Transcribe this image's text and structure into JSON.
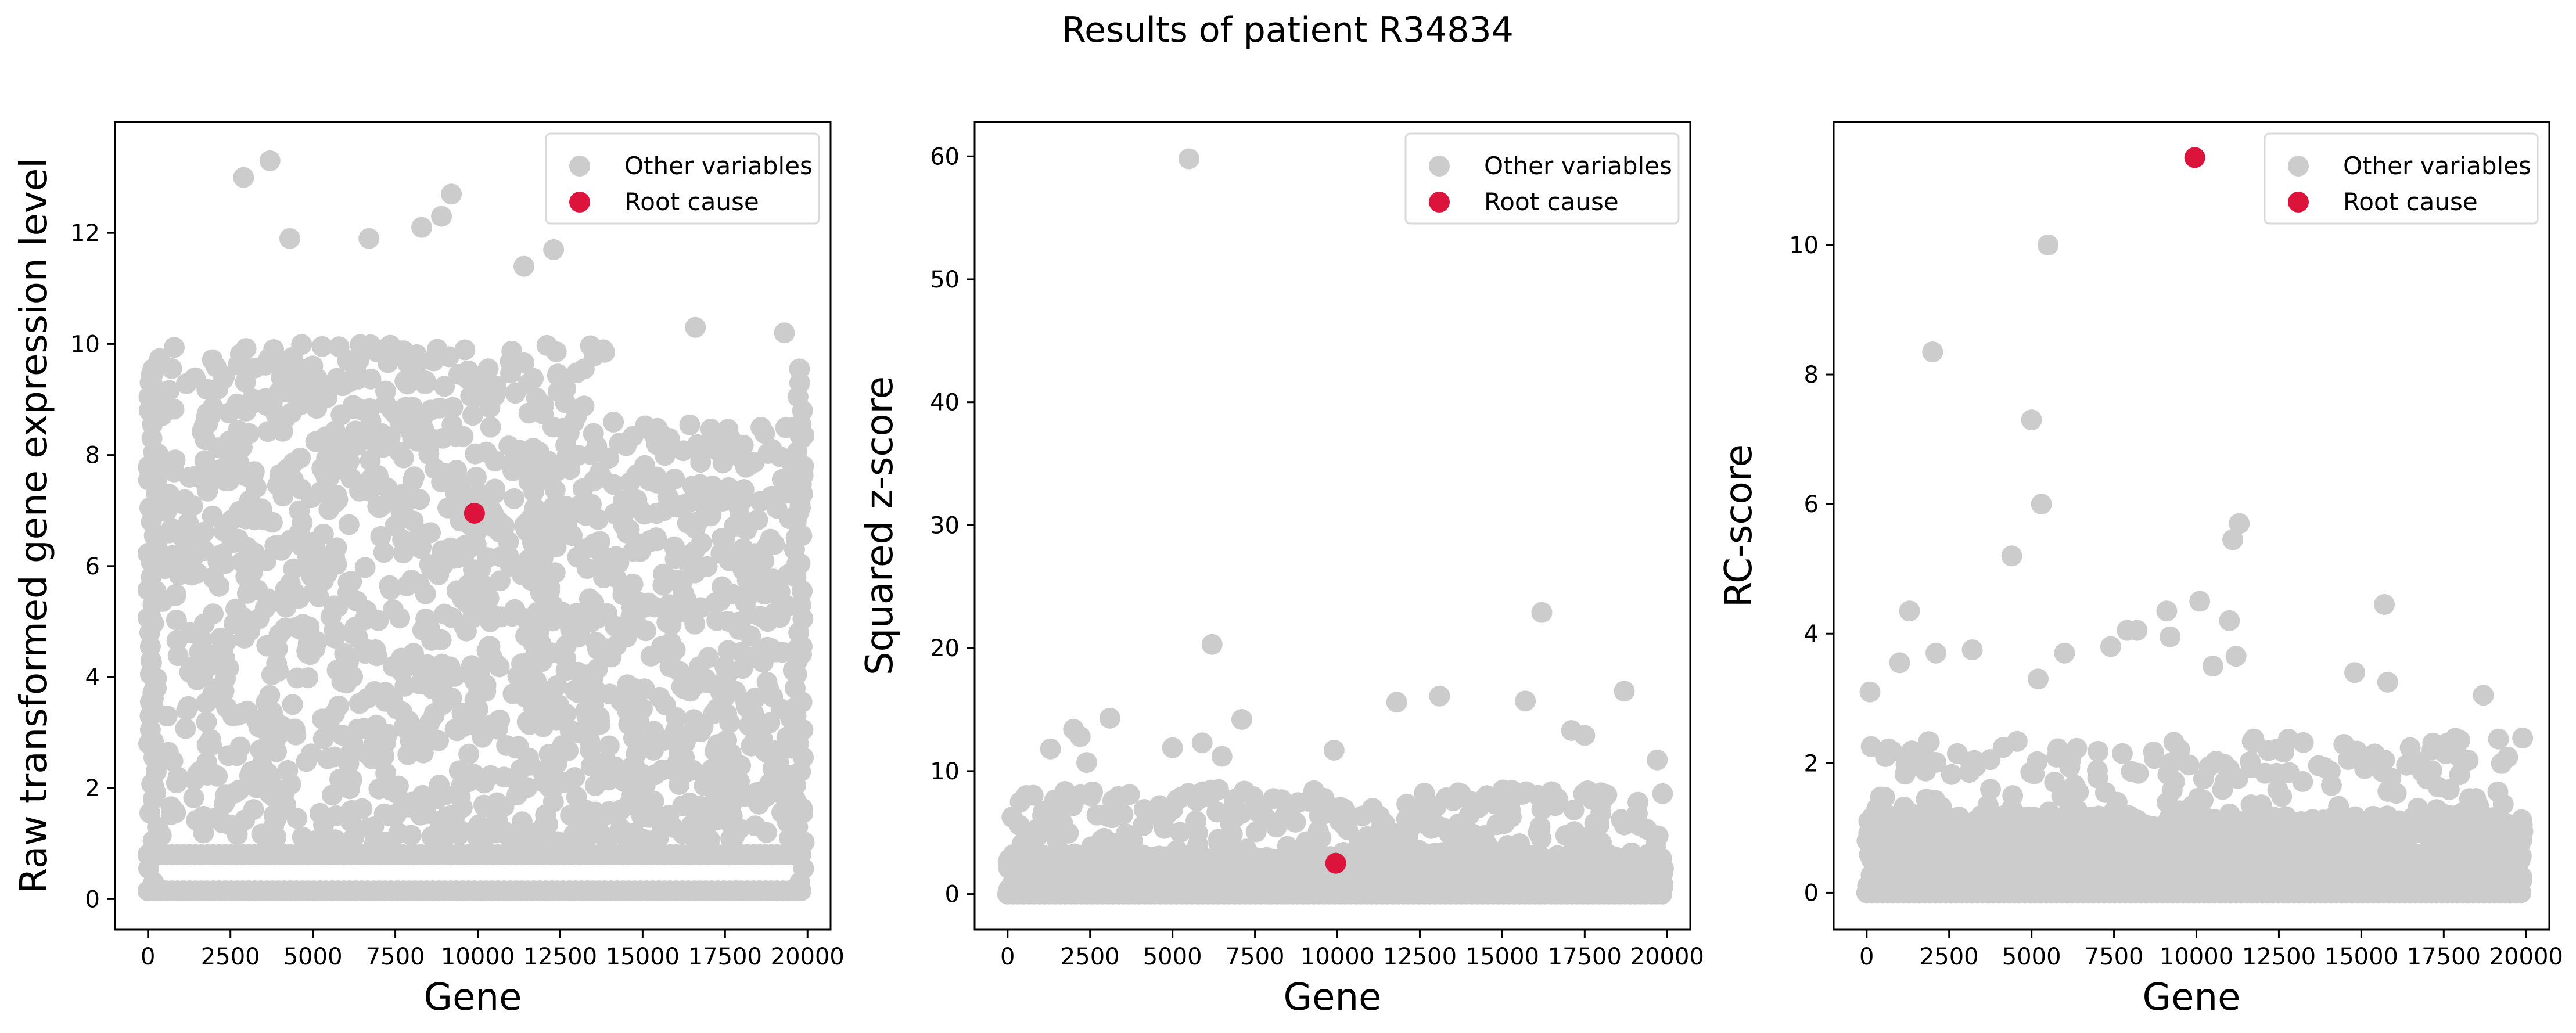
{
  "figure": {
    "title": "Results of patient R34834"
  },
  "colors": {
    "other": "#cccccc",
    "root": "#dc143c",
    "axis": "#000000",
    "legend_border": "#d9d9d9"
  },
  "chart_data": [
    {
      "type": "scatter",
      "xlabel": "Gene",
      "ylabel": "Raw transformed gene expression level",
      "xlim": [
        -1000,
        20700
      ],
      "ylim": [
        -0.55,
        14.0
      ],
      "xticks": [
        0,
        2500,
        5000,
        7500,
        10000,
        12500,
        15000,
        17500,
        20000
      ],
      "yticks": [
        0,
        2,
        4,
        6,
        8,
        10,
        12
      ],
      "legend": [
        "Other variables",
        "Root cause"
      ],
      "legend_loc": "upper right",
      "other_variables": {
        "n_genes": 19900,
        "pattern": "dense band of expression values between ~0.1 and ~10 across all genes, flatter after gene 14000",
        "baseline_rows": [
          0.15,
          0.8
        ],
        "notable_points": [
          [
            3700,
            13.3
          ],
          [
            2900,
            13.0
          ],
          [
            9200,
            12.7
          ],
          [
            4300,
            11.9
          ],
          [
            8900,
            12.3
          ],
          [
            8300,
            12.1
          ],
          [
            12300,
            11.7
          ],
          [
            16600,
            10.3
          ],
          [
            19300,
            10.2
          ],
          [
            11400,
            11.4
          ],
          [
            6700,
            11.9
          ]
        ]
      },
      "root_cause": {
        "x": 9900,
        "y": 6.95
      }
    },
    {
      "type": "scatter",
      "xlabel": "Gene",
      "ylabel": "Squared z-score",
      "xlim": [
        -1000,
        20700
      ],
      "ylim": [
        -2.9,
        62.8
      ],
      "xticks": [
        0,
        2500,
        5000,
        7500,
        10000,
        12500,
        15000,
        17500,
        20000
      ],
      "yticks": [
        0,
        10,
        20,
        30,
        40,
        50,
        60
      ],
      "legend": [
        "Other variables",
        "Root cause"
      ],
      "legend_loc": "upper right",
      "other_variables": {
        "n_genes": 19900,
        "pattern": "mass of points between 0 and ~8 with sparse outliers above",
        "notable_points": [
          [
            5500,
            59.8
          ],
          [
            16200,
            22.9
          ],
          [
            6200,
            20.3
          ],
          [
            18700,
            16.5
          ],
          [
            13100,
            16.1
          ],
          [
            15700,
            15.7
          ],
          [
            11800,
            15.6
          ],
          [
            3100,
            14.3
          ],
          [
            7100,
            14.2
          ],
          [
            17100,
            13.3
          ],
          [
            17500,
            12.9
          ],
          [
            2000,
            13.4
          ],
          [
            2200,
            12.8
          ],
          [
            9900,
            11.7
          ],
          [
            5900,
            12.3
          ],
          [
            19700,
            10.9
          ],
          [
            1300,
            11.8
          ],
          [
            2400,
            10.7
          ],
          [
            6500,
            11.2
          ],
          [
            5000,
            11.9
          ]
        ]
      },
      "root_cause": {
        "x": 9950,
        "y": 2.5
      }
    },
    {
      "type": "scatter",
      "xlabel": "Gene",
      "ylabel": "RC-score",
      "xlim": [
        -1000,
        20700
      ],
      "ylim": [
        -0.57,
        11.9
      ],
      "xticks": [
        0,
        2500,
        5000,
        7500,
        10000,
        12500,
        15000,
        17500,
        20000
      ],
      "yticks": [
        0,
        2,
        4,
        6,
        8,
        10
      ],
      "legend": [
        "Other variables",
        "Root cause"
      ],
      "legend_loc": "upper right",
      "other_variables": {
        "n_genes": 19900,
        "pattern": "mass of points between 0 and ~1.8 with sparse outliers above",
        "notable_points": [
          [
            5500,
            10.0
          ],
          [
            2000,
            8.35
          ],
          [
            5000,
            7.3
          ],
          [
            5300,
            6.0
          ],
          [
            11300,
            5.7
          ],
          [
            11100,
            5.45
          ],
          [
            4400,
            5.2
          ],
          [
            1300,
            4.35
          ],
          [
            15700,
            4.45
          ],
          [
            10100,
            4.5
          ],
          [
            11000,
            4.2
          ],
          [
            9100,
            4.35
          ],
          [
            7900,
            4.05
          ],
          [
            8200,
            4.05
          ],
          [
            9200,
            3.95
          ],
          [
            3200,
            3.75
          ],
          [
            2100,
            3.7
          ],
          [
            1000,
            3.55
          ],
          [
            6000,
            3.7
          ],
          [
            11200,
            3.65
          ],
          [
            5200,
            3.3
          ],
          [
            14800,
            3.4
          ],
          [
            15800,
            3.25
          ],
          [
            18700,
            3.05
          ],
          [
            100,
            3.1
          ],
          [
            7400,
            3.8
          ],
          [
            10500,
            3.5
          ]
        ]
      },
      "root_cause": {
        "x": 9950,
        "y": 11.35
      }
    }
  ]
}
